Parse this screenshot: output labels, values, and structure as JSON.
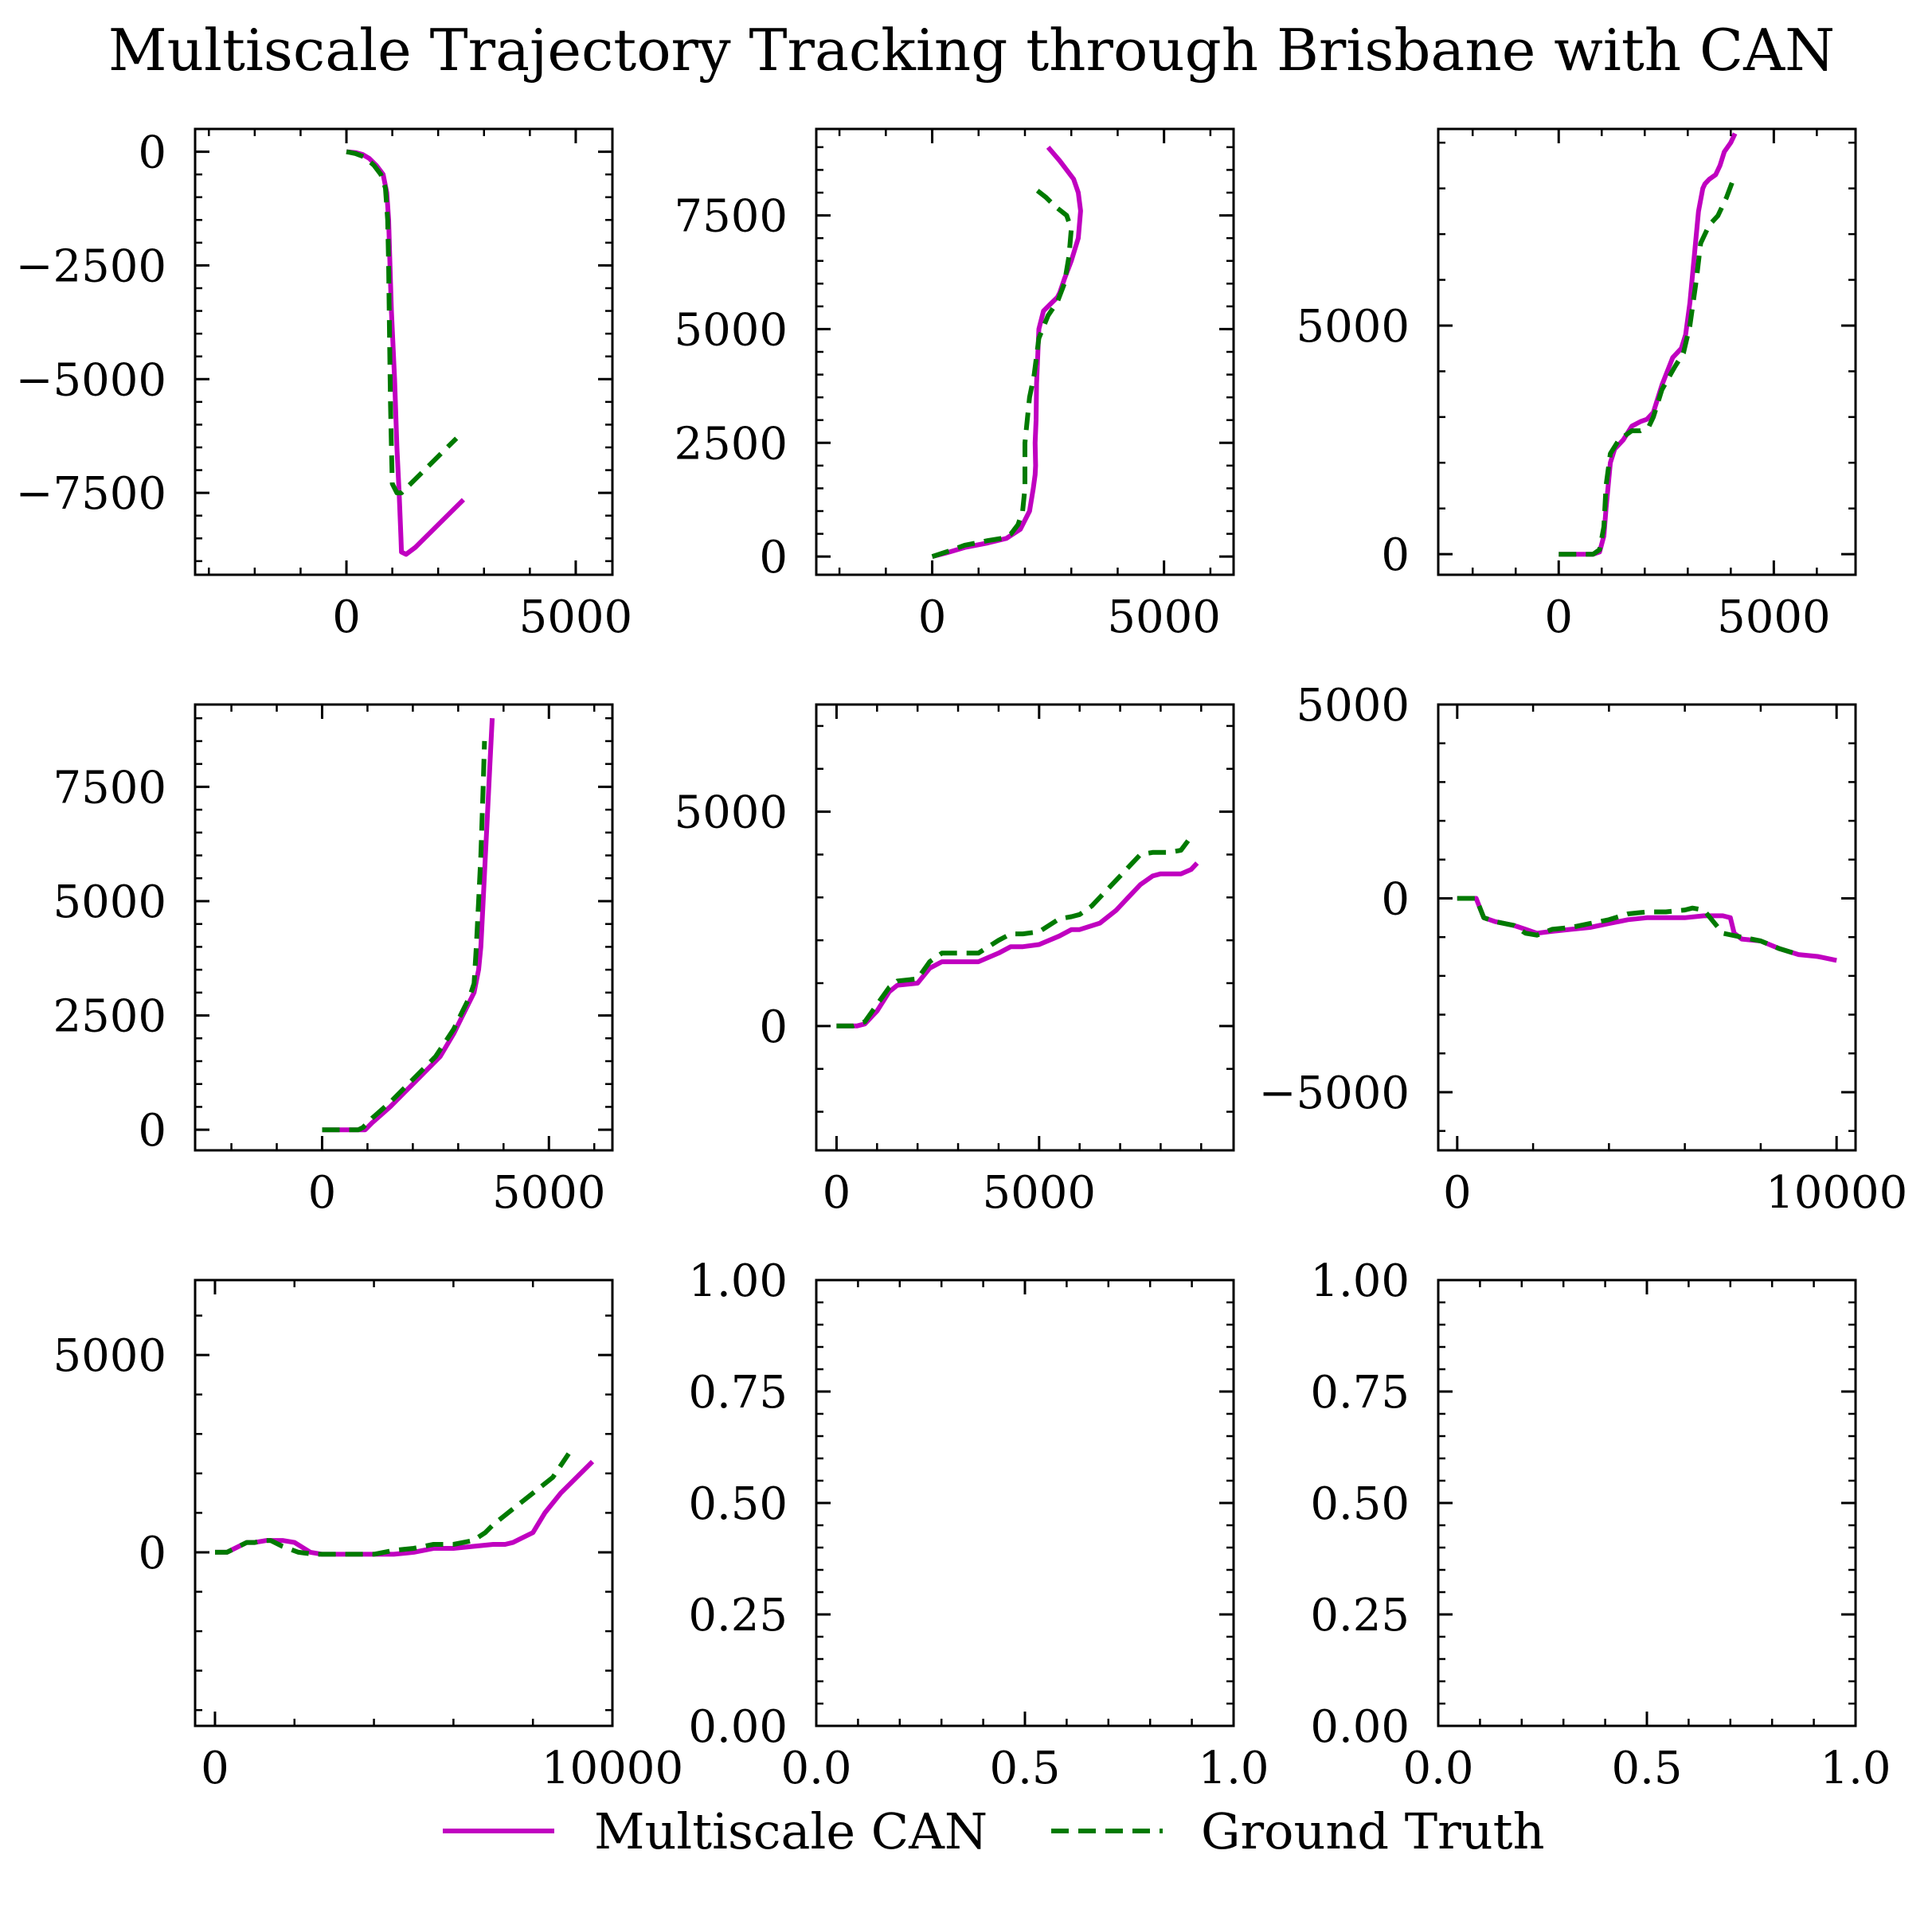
{
  "title": "Multiscale Trajectory Tracking through Brisbane with CAN",
  "colors": {
    "pred": "#c000c0",
    "gt": "#007a00",
    "axis": "#000000"
  },
  "legend": {
    "placement": "bottom-center",
    "items": [
      {
        "label": "Multiscale CAN",
        "style": "solid",
        "color": "#c000c0"
      },
      {
        "label": "Ground Truth",
        "style": "dashed",
        "color": "#007a00"
      }
    ]
  },
  "chart_data": [
    {
      "type": "line",
      "xlim": [
        -3300,
        5800
      ],
      "ylim": [
        -9300,
        500
      ],
      "xticks": [
        0,
        5000
      ],
      "xticklabels": [
        "0",
        "5000"
      ],
      "yticks": [
        0,
        -2500,
        -5000,
        -7500
      ],
      "yticklabels": [
        "0",
        "−2500",
        "−5000",
        "−7500"
      ],
      "series": [
        {
          "name": "Multiscale CAN",
          "style": "solid",
          "x": [
            0,
            200,
            350,
            500,
            650,
            800,
            880,
            920,
            950,
            980,
            1050,
            1100,
            1150,
            1190,
            1200,
            1300,
            1500,
            2000,
            2550
          ],
          "y": [
            0,
            -20,
            -60,
            -150,
            -300,
            -500,
            -900,
            -1500,
            -2500,
            -3500,
            -5000,
            -6500,
            -7500,
            -8500,
            -8800,
            -8850,
            -8700,
            -8200,
            -7650
          ]
        },
        {
          "name": "Ground Truth",
          "style": "dashed",
          "x": [
            0,
            200,
            400,
            600,
            750,
            850,
            900,
            920,
            940,
            960,
            980,
            1000,
            1100,
            1200,
            1500,
            2000,
            2400
          ],
          "y": [
            0,
            -40,
            -120,
            -300,
            -500,
            -800,
            -1500,
            -2500,
            -4000,
            -5500,
            -6500,
            -7300,
            -7500,
            -7500,
            -7200,
            -6700,
            -6300
          ]
        }
      ]
    },
    {
      "type": "line",
      "xlim": [
        -2500,
        6500
      ],
      "ylim": [
        -400,
        9400
      ],
      "xticks": [
        0,
        5000
      ],
      "xticklabels": [
        "0",
        "5000"
      ],
      "yticks": [
        0,
        2500,
        5000,
        7500
      ],
      "yticklabels": [
        "0",
        "2500",
        "5000",
        "7500"
      ],
      "series": [
        {
          "name": "Multiscale CAN",
          "style": "solid",
          "x": [
            0,
            300,
            700,
            1200,
            1600,
            1900,
            2100,
            2180,
            2220,
            2230,
            2220,
            2240,
            2250,
            2280,
            2300,
            2400,
            2600,
            2700,
            2750,
            2850,
            3000,
            3150,
            3200,
            3150,
            3050,
            2900,
            2750,
            2500
          ],
          "y": [
            0,
            80,
            200,
            300,
            400,
            600,
            1000,
            1500,
            1800,
            2000,
            2500,
            3000,
            3800,
            4500,
            5000,
            5400,
            5600,
            5700,
            5800,
            6100,
            6500,
            7000,
            7600,
            8000,
            8300,
            8500,
            8700,
            9000
          ]
        },
        {
          "name": "Ground Truth",
          "style": "dashed",
          "x": [
            0,
            300,
            700,
            1200,
            1500,
            1700,
            1850,
            1950,
            2000,
            2000,
            2000,
            2050,
            2100,
            2200,
            2300,
            2500,
            2700,
            2850,
            2950,
            3000,
            2900,
            2650,
            2450,
            2200
          ],
          "y": [
            0,
            100,
            250,
            350,
            400,
            500,
            700,
            1000,
            1500,
            2000,
            2500,
            3000,
            3500,
            4000,
            4800,
            5300,
            5600,
            6000,
            6600,
            7200,
            7500,
            7700,
            7900,
            8100
          ]
        }
      ]
    },
    {
      "type": "line",
      "xlim": [
        -2800,
        6900
      ],
      "ylim": [
        -450,
        9300
      ],
      "xticks": [
        0,
        5000
      ],
      "xticklabels": [
        "0",
        "5000"
      ],
      "yticks": [
        0,
        5000
      ],
      "yticklabels": [
        "0",
        "5000"
      ],
      "series": [
        {
          "name": "Multiscale CAN",
          "style": "solid",
          "x": [
            0,
            500,
            800,
            950,
            1050,
            1100,
            1150,
            1200,
            1300,
            1500,
            1700,
            1900,
            2050,
            2200,
            2400,
            2650,
            2850,
            2950,
            3050,
            3150,
            3250,
            3350,
            3400,
            3500,
            3650,
            3750,
            3850,
            4000,
            4100
          ],
          "y": [
            0,
            0,
            0,
            50,
            400,
            1000,
            1500,
            2000,
            2300,
            2500,
            2800,
            2900,
            2950,
            3100,
            3700,
            4300,
            4500,
            4800,
            5500,
            6500,
            7500,
            8000,
            8100,
            8200,
            8300,
            8500,
            8800,
            9000,
            9200
          ]
        },
        {
          "name": "Ground Truth",
          "style": "dashed",
          "x": [
            0,
            500,
            800,
            950,
            1050,
            1100,
            1200,
            1400,
            1700,
            1900,
            2100,
            2200,
            2400,
            2700,
            2900,
            3050,
            3200,
            3300,
            3400,
            3500,
            3700,
            3900,
            4100
          ],
          "y": [
            0,
            0,
            0,
            100,
            600,
            1500,
            2200,
            2500,
            2700,
            2700,
            2800,
            3000,
            3600,
            4100,
            4400,
            5000,
            6000,
            6800,
            7000,
            7200,
            7400,
            7800,
            8300
          ]
        }
      ]
    },
    {
      "type": "line",
      "xlim": [
        -2800,
        6400
      ],
      "ylim": [
        -450,
        9300
      ],
      "xticks": [
        0,
        5000
      ],
      "xticklabels": [
        "0",
        "5000"
      ],
      "yticks": [
        0,
        2500,
        5000,
        7500
      ],
      "yticklabels": [
        "0",
        "2500",
        "5000",
        "7500"
      ],
      "series": [
        {
          "name": "Multiscale CAN",
          "style": "solid",
          "x": [
            0,
            500,
            800,
            950,
            1100,
            1500,
            2000,
            2600,
            2900,
            3100,
            3250,
            3350,
            3450,
            3500,
            3550,
            3600,
            3650,
            3700,
            3750
          ],
          "y": [
            0,
            0,
            0,
            0,
            150,
            500,
            1000,
            1600,
            2100,
            2500,
            2800,
            3000,
            3500,
            4000,
            5000,
            6000,
            7000,
            8000,
            9000
          ]
        },
        {
          "name": "Ground Truth",
          "style": "dashed",
          "x": [
            0,
            500,
            800,
            900,
            1100,
            1500,
            2000,
            2500,
            2900,
            3100,
            3250,
            3350,
            3400,
            3450,
            3500,
            3550,
            3580
          ],
          "y": [
            0,
            0,
            0,
            50,
            250,
            600,
            1100,
            1600,
            2200,
            2600,
            2900,
            3200,
            4000,
            5000,
            6000,
            7500,
            8500
          ]
        }
      ]
    },
    {
      "type": "line",
      "xlim": [
        -500,
        9800
      ],
      "ylim": [
        -2900,
        7500
      ],
      "xticks": [
        0,
        5000
      ],
      "xticklabels": [
        "0",
        "5000"
      ],
      "yticks": [
        0,
        5000
      ],
      "yticklabels": [
        "0",
        "5000"
      ],
      "series": [
        {
          "name": "Multiscale CAN",
          "style": "solid",
          "x": [
            0,
            500,
            700,
            1000,
            1300,
            1500,
            2000,
            2300,
            2600,
            3000,
            3500,
            4000,
            4300,
            4600,
            5000,
            5500,
            5800,
            6000,
            6500,
            6900,
            7200,
            7500,
            7800,
            8000,
            8200,
            8500,
            8750,
            8900
          ],
          "y": [
            0,
            0,
            50,
            350,
            800,
            950,
            1000,
            1350,
            1500,
            1500,
            1500,
            1700,
            1850,
            1850,
            1900,
            2100,
            2250,
            2250,
            2400,
            2700,
            3000,
            3300,
            3500,
            3550,
            3550,
            3550,
            3650,
            3800
          ]
        },
        {
          "name": "Ground Truth",
          "style": "dashed",
          "x": [
            0,
            400,
            700,
            1000,
            1300,
            1500,
            2000,
            2300,
            2600,
            3000,
            3500,
            4000,
            4300,
            4600,
            5000,
            5500,
            5800,
            6000,
            6300,
            6600,
            7000,
            7300,
            7500,
            7800,
            8000,
            8200,
            8500,
            8700
          ],
          "y": [
            0,
            0,
            100,
            500,
            900,
            1050,
            1100,
            1500,
            1700,
            1700,
            1700,
            2000,
            2150,
            2150,
            2200,
            2500,
            2550,
            2600,
            2800,
            3100,
            3500,
            3800,
            4000,
            4050,
            4050,
            4050,
            4100,
            4350
          ]
        }
      ]
    },
    {
      "type": "line",
      "xlim": [
        -500,
        10500
      ],
      "ylim": [
        -6500,
        5000
      ],
      "xticks": [
        0,
        10000
      ],
      "xticklabels": [
        "0",
        "10000"
      ],
      "yticks": [
        -5000,
        0,
        5000
      ],
      "yticklabels": [
        "−5000",
        "0",
        "5000"
      ],
      "series": [
        {
          "name": "Multiscale CAN",
          "style": "solid",
          "x": [
            0,
            500,
            700,
            1000,
            1500,
            1800,
            2100,
            2500,
            3000,
            3500,
            4000,
            4500,
            5000,
            5500,
            6000,
            6500,
            7000,
            7200,
            7300,
            7500,
            8000,
            8500,
            9000,
            9500,
            10000
          ],
          "y": [
            0,
            0,
            -500,
            -600,
            -700,
            -800,
            -900,
            -850,
            -800,
            -750,
            -650,
            -550,
            -500,
            -500,
            -500,
            -450,
            -450,
            -500,
            -900,
            -1050,
            -1100,
            -1300,
            -1450,
            -1500,
            -1600
          ]
        },
        {
          "name": "Ground Truth",
          "style": "dashed",
          "x": [
            0,
            500,
            700,
            1000,
            1500,
            1800,
            2100,
            2500,
            3000,
            3500,
            4000,
            4500,
            5000,
            5500,
            6000,
            6200,
            6500,
            7000,
            7500,
            8000,
            8500,
            9000
          ],
          "y": [
            0,
            0,
            -500,
            -600,
            -700,
            -900,
            -950,
            -800,
            -750,
            -650,
            -550,
            -400,
            -350,
            -350,
            -300,
            -250,
            -300,
            -900,
            -1000,
            -1100,
            -1300,
            -1450
          ]
        }
      ]
    },
    {
      "type": "line",
      "xlim": [
        -500,
        10000
      ],
      "ylim": [
        -4400,
        6900
      ],
      "xticks": [
        0,
        10000
      ],
      "xticklabels": [
        "0",
        "10000"
      ],
      "yticks": [
        0,
        5000
      ],
      "yticklabels": [
        "0",
        "5000"
      ],
      "series": [
        {
          "name": "Multiscale CAN",
          "style": "solid",
          "x": [
            0,
            300,
            500,
            800,
            1000,
            1300,
            1700,
            2000,
            2400,
            2700,
            3000,
            3500,
            4000,
            4500,
            5000,
            5500,
            6000,
            6500,
            7000,
            7300,
            7500,
            7700,
            8000,
            8300,
            8700,
            9100,
            9500
          ],
          "y": [
            0,
            0,
            100,
            250,
            250,
            300,
            300,
            250,
            0,
            -50,
            -50,
            -50,
            -50,
            -50,
            0,
            100,
            100,
            150,
            200,
            200,
            250,
            350,
            500,
            1000,
            1500,
            1900,
            2300
          ]
        },
        {
          "name": "Ground Truth",
          "style": "dashed",
          "x": [
            0,
            300,
            500,
            800,
            1000,
            1200,
            1400,
            1700,
            2100,
            2500,
            3000,
            3500,
            4000,
            4500,
            5000,
            5500,
            6000,
            6500,
            6800,
            7000,
            7500,
            8000,
            8500,
            8900
          ],
          "y": [
            0,
            0,
            100,
            250,
            250,
            300,
            300,
            150,
            0,
            -50,
            -50,
            -50,
            -50,
            50,
            100,
            200,
            200,
            300,
            500,
            700,
            1100,
            1500,
            1900,
            2500
          ]
        }
      ]
    },
    {
      "type": "line",
      "xlim": [
        0,
        1
      ],
      "ylim": [
        0,
        1
      ],
      "xticks": [
        0,
        0.5,
        1
      ],
      "xticklabels": [
        "0.0",
        "0.5",
        "1.0"
      ],
      "yticks": [
        0,
        0.25,
        0.5,
        0.75,
        1
      ],
      "yticklabels": [
        "0.00",
        "0.25",
        "0.50",
        "0.75",
        "1.00"
      ],
      "series": []
    },
    {
      "type": "line",
      "xlim": [
        0,
        1
      ],
      "ylim": [
        0,
        1
      ],
      "xticks": [
        0,
        0.5,
        1
      ],
      "xticklabels": [
        "0.0",
        "0.5",
        "1.0"
      ],
      "yticks": [
        0,
        0.25,
        0.5,
        0.75,
        1
      ],
      "yticklabels": [
        "0.00",
        "0.25",
        "0.50",
        "0.75",
        "1.00"
      ],
      "series": []
    }
  ]
}
